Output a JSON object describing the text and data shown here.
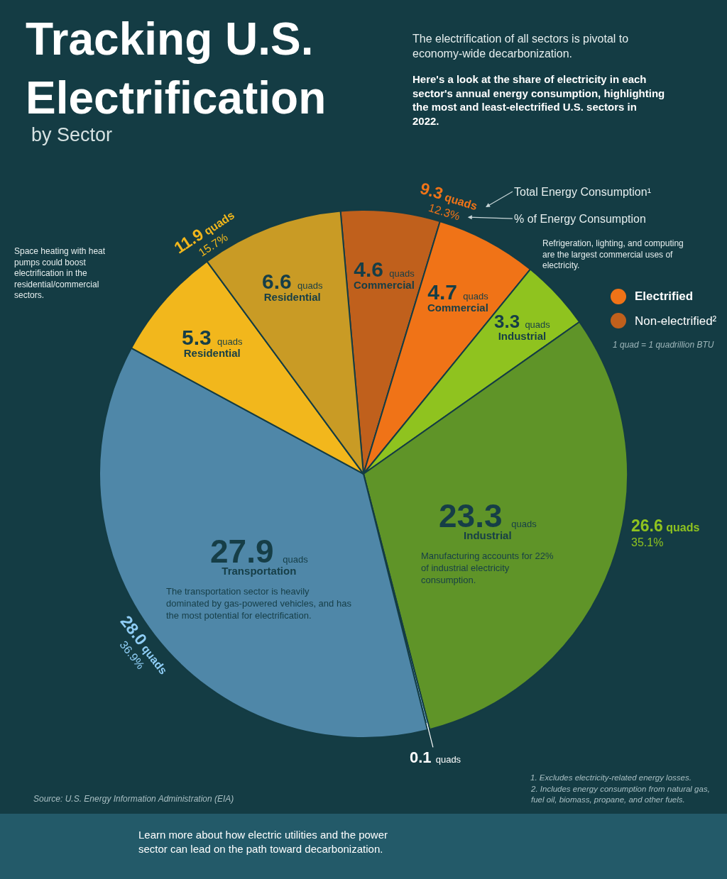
{
  "chart_data": {
    "type": "pie",
    "title": "Tracking U.S. Electrification",
    "subtitle": "by Sector",
    "categories": [
      "Commercial",
      "Commercial",
      "Industrial",
      "Industrial",
      null,
      "Transportation",
      "Residential",
      "Residential"
    ],
    "values": [
      4.6,
      4.7,
      3.3,
      23.3,
      0.1,
      27.9,
      5.3,
      6.6
    ],
    "colors": [
      "#c0601c",
      "#f07317",
      "#8fc31f",
      "#5f9428",
      "#8fcdf5",
      "#4f87a8",
      "#f2b71c",
      "#c99b25"
    ],
    "value_labels": [
      "4.6 quads",
      "4.7 quads",
      "3.3 quads",
      "23.3 quads",
      "0.1 quads",
      "27.9 quads",
      "5.3 quads",
      "6.6 quads"
    ],
    "annotations": [
      "The electrification of all sectors is pivotal to economy-wide decarbonization.",
      "Here's a look at the share of electricity in each sector's annual energy consumption, highlighting the most and least-electrified U.S. sectors in 2022.",
      "9.3 quads\n12.3%",
      "Total Energy Consumption¹",
      "% of Energy Consumption",
      "Electrified",
      "Non-electrified²",
      "1 quad = 1 quadrillion BTU",
      "Refrigeration, lighting, and computing are the largest commercial uses of electricity.",
      "11.9 quads\n15.7%",
      "Space heating with heat pumps could boost electrification in the residential/commercial sectors.",
      "Manufacturing accounts for 22% of industrial electricity consumption.",
      "26.6 quads\n35.1%",
      "The transportation sector is heavily dominated by gas-powered vehicles, and has the most potential for electrification.",
      "28.0 quads\n36.9%",
      "Source: U.S. Energy Information Administration (EIA)",
      "1. Excludes electricity-related energy losses.",
      "2. Includes energy consumption from natural gas, fuel oil, biomass, propane, and other fuels.",
      "Learn more about how electric utilities and the power sector can lead on the path toward decarbonization."
    ]
  }
}
